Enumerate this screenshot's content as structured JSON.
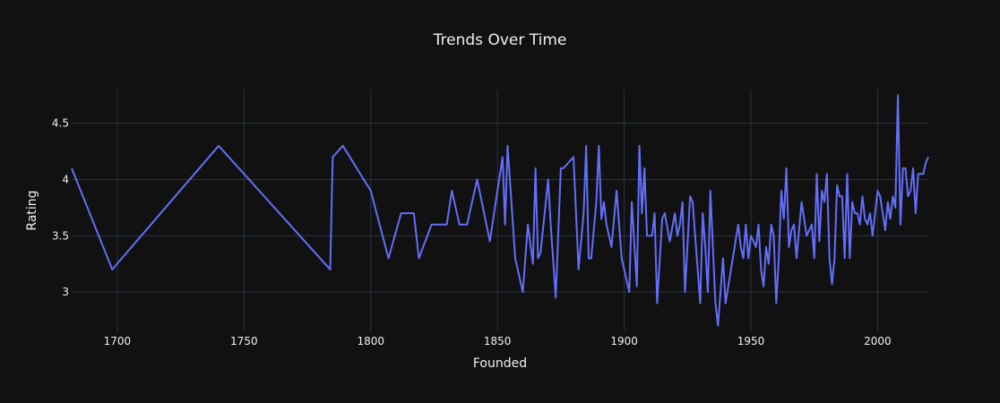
{
  "chart_data": {
    "type": "line",
    "title": "Trends Over Time",
    "xlabel": "Founded",
    "ylabel": "Rating",
    "xlim": [
      1682,
      2020
    ],
    "ylim": [
      2.65,
      4.8
    ],
    "x_ticks": [
      1700,
      1750,
      1800,
      1850,
      1900,
      1950,
      2000
    ],
    "x_tick_labels": [
      "1700",
      "1750",
      "1800",
      "1850",
      "1900",
      "1950",
      "2000"
    ],
    "y_ticks": [
      3,
      3.5,
      4,
      4.5
    ],
    "y_tick_labels": [
      "3",
      "3.5",
      "4",
      "4.5"
    ],
    "grid": true,
    "line_color": "#636efa",
    "background": "#111111",
    "grid_color": "#283442",
    "series": [
      {
        "x": [
          1682,
          1698,
          1740,
          1784,
          1785,
          1789,
          1800,
          1807,
          1812,
          1817,
          1819,
          1824,
          1830,
          1832,
          1835,
          1838,
          1842,
          1847,
          1852,
          1853,
          1854,
          1857,
          1860,
          1862,
          1864,
          1865,
          1866,
          1867,
          1870,
          1871,
          1873,
          1875,
          1876,
          1880,
          1882,
          1884,
          1885,
          1886,
          1887,
          1889,
          1890,
          1891,
          1892,
          1893,
          1895,
          1897,
          1899,
          1902,
          1903,
          1905,
          1906,
          1907,
          1908,
          1909,
          1911,
          1912,
          1913,
          1915,
          1916,
          1918,
          1920,
          1921,
          1922,
          1923,
          1924,
          1926,
          1927,
          1928,
          1930,
          1931,
          1932,
          1933,
          1934,
          1936,
          1937,
          1938,
          1939,
          1940,
          1945,
          1946,
          1947,
          1948,
          1949,
          1950,
          1952,
          1953,
          1954,
          1955,
          1956,
          1957,
          1958,
          1959,
          1960,
          1961,
          1962,
          1963,
          1964,
          1965,
          1966,
          1967,
          1968,
          1970,
          1972,
          1973,
          1974,
          1975,
          1976,
          1977,
          1978,
          1979,
          1980,
          1981,
          1982,
          1983,
          1984,
          1985,
          1986,
          1987,
          1988,
          1989,
          1990,
          1991,
          1992,
          1993,
          1994,
          1995,
          1996,
          1997,
          1998,
          1999,
          2000,
          2001,
          2002,
          2003,
          2004,
          2005,
          2006,
          2007,
          2008,
          2009,
          2010,
          2011,
          2012,
          2013,
          2014,
          2015,
          2016,
          2017,
          2018,
          2019,
          2020
        ],
        "y": [
          4.1,
          3.2,
          4.3,
          3.2,
          4.2,
          4.3,
          3.9,
          3.3,
          3.7,
          3.7,
          3.3,
          3.6,
          3.6,
          3.9,
          3.6,
          3.6,
          4.0,
          3.45,
          4.2,
          3.6,
          4.3,
          3.3,
          3.0,
          3.6,
          3.25,
          4.1,
          3.3,
          3.35,
          4.0,
          3.6,
          2.95,
          4.1,
          4.1,
          4.2,
          3.2,
          3.7,
          4.3,
          3.3,
          3.3,
          3.8,
          4.3,
          3.65,
          3.8,
          3.6,
          3.4,
          3.9,
          3.3,
          3.0,
          3.8,
          3.05,
          4.3,
          3.7,
          4.1,
          3.5,
          3.5,
          3.7,
          2.9,
          3.65,
          3.7,
          3.45,
          3.7,
          3.5,
          3.6,
          3.8,
          3.0,
          3.85,
          3.8,
          3.5,
          2.9,
          3.7,
          3.4,
          3.0,
          3.9,
          2.9,
          2.7,
          3.0,
          3.3,
          2.9,
          3.6,
          3.4,
          3.3,
          3.6,
          3.3,
          3.5,
          3.4,
          3.6,
          3.2,
          3.05,
          3.4,
          3.25,
          3.6,
          3.5,
          2.9,
          3.3,
          3.9,
          3.65,
          4.1,
          3.4,
          3.55,
          3.6,
          3.3,
          3.8,
          3.5,
          3.55,
          3.6,
          3.3,
          4.05,
          3.45,
          3.9,
          3.8,
          4.05,
          3.3,
          3.07,
          3.3,
          3.95,
          3.85,
          3.85,
          3.3,
          4.05,
          3.3,
          3.8,
          3.7,
          3.7,
          3.6,
          3.85,
          3.65,
          3.6,
          3.7,
          3.5,
          3.7,
          3.9,
          3.85,
          3.7,
          3.55,
          3.8,
          3.65,
          3.85,
          3.75,
          4.75,
          3.6,
          4.1,
          4.1,
          3.85,
          3.9,
          4.1,
          3.7,
          4.05,
          4.05,
          4.05,
          4.15,
          4.2
        ]
      }
    ]
  }
}
